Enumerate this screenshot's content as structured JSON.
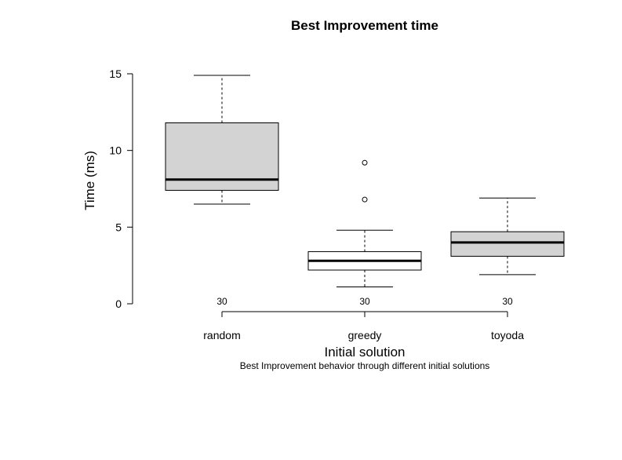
{
  "chart_data": {
    "type": "boxplot",
    "title": "Best Improvement time",
    "subtitle": "Best Improvement behavior through different initial solutions",
    "xlabel": "Initial solution",
    "ylabel": "Time (ms)",
    "ylim": [
      0,
      15
    ],
    "yticks": [
      0,
      5,
      10,
      15
    ],
    "grid": false,
    "categories": [
      "random",
      "greedy",
      "toyoda"
    ],
    "boxes": [
      {
        "label": "random",
        "n": "30",
        "min": 6.5,
        "q1": 7.4,
        "median": 8.1,
        "q3": 11.8,
        "max": 14.9,
        "outliers": [],
        "fill": "#d3d3d3"
      },
      {
        "label": "greedy",
        "n": "30",
        "min": 1.1,
        "q1": 2.2,
        "median": 2.8,
        "q3": 3.4,
        "max": 4.8,
        "outliers": [
          6.8,
          9.2
        ],
        "fill": "#ffffff"
      },
      {
        "label": "toyoda",
        "n": "30",
        "min": 1.9,
        "q1": 3.1,
        "median": 4.0,
        "q3": 4.7,
        "max": 6.9,
        "outliers": [],
        "fill": "#d3d3d3"
      }
    ]
  }
}
